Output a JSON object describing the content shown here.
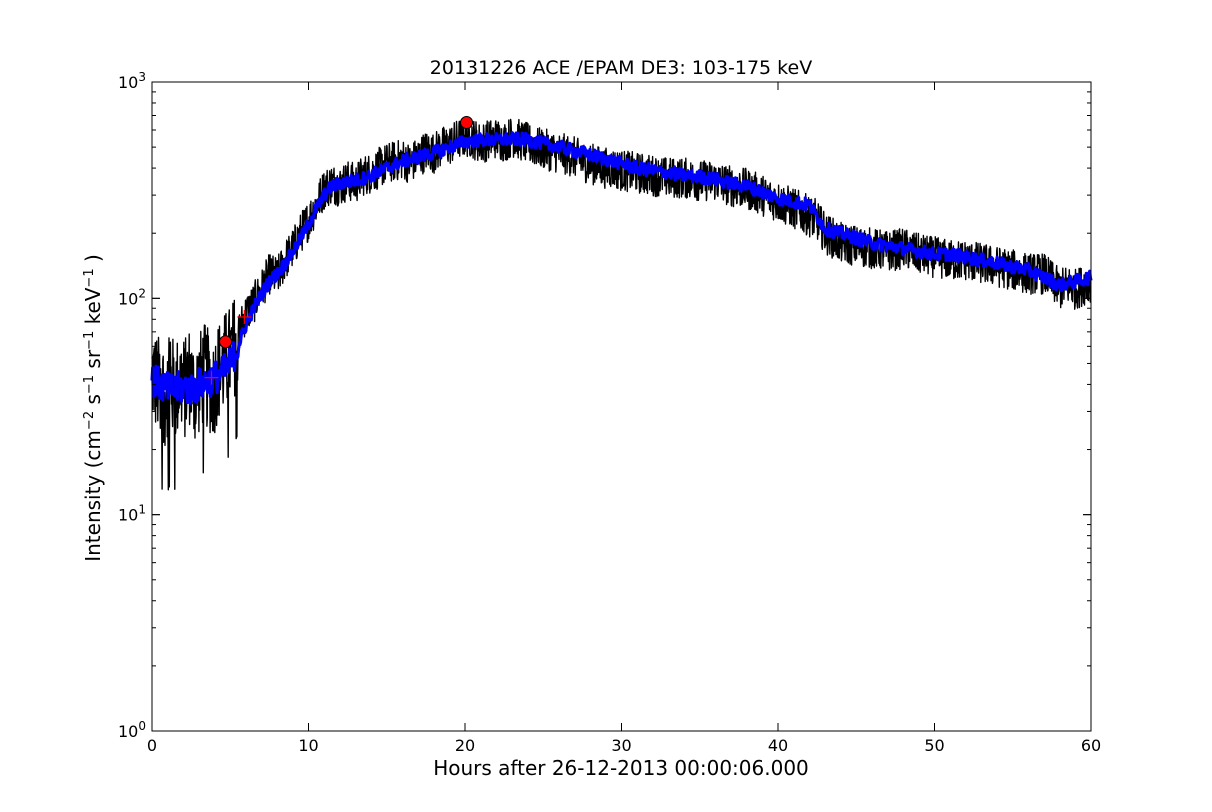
{
  "chart_data": {
    "type": "line",
    "title": "20131226 ACE /EPAM DE3: 103-175 keV",
    "xlabel": "Hours after 26-12-2013 00:00:06.000",
    "ylabel_main": "Intensity (cm",
    "ylabel_parts": [
      "−2",
      " s",
      "−1",
      " sr",
      "−1",
      " keV",
      "−1",
      " )"
    ],
    "xlim": [
      0,
      60
    ],
    "ylim": [
      1,
      1000
    ],
    "yscale": "log",
    "xticks": [
      0,
      10,
      20,
      30,
      40,
      50,
      60
    ],
    "xtick_labels": [
      "0",
      "10",
      "20",
      "30",
      "40",
      "50",
      "60"
    ],
    "yticks_major": [
      1,
      10,
      100,
      1000
    ],
    "ytick_labels": [
      {
        "base": "10",
        "exp": "0"
      },
      {
        "base": "10",
        "exp": "1"
      },
      {
        "base": "10",
        "exp": "2"
      },
      {
        "base": "10",
        "exp": "3"
      }
    ],
    "grid": false,
    "colors": {
      "raw": "#000000",
      "smoothed": "#0000ff",
      "markers": "#ff0000"
    },
    "series": [
      {
        "kind": "raw",
        "x": [
          0,
          0.3,
          0.6,
          0.9,
          1.2,
          1.5,
          1.8,
          2.1,
          2.4,
          2.7,
          3.0,
          3.3,
          3.6,
          3.9,
          4.2,
          4.5,
          4.8,
          5.1,
          5.4,
          5.7,
          6.0,
          6.5,
          7,
          7.5,
          8,
          8.5,
          9,
          9.5,
          10,
          10.5,
          11,
          11.5,
          12,
          12.5,
          13,
          13.5,
          14,
          14.5,
          15,
          15.5,
          16,
          16.5,
          17,
          17.5,
          18,
          18.5,
          19,
          19.5,
          20,
          20.5,
          21,
          21.5,
          22,
          22.5,
          23,
          23.5,
          24,
          24.5,
          25,
          25.5,
          26,
          26.5,
          27,
          27.5,
          28,
          28.5,
          29,
          29.5,
          30,
          31,
          32,
          33,
          34,
          35,
          36,
          37,
          38,
          39,
          40,
          40.5,
          41,
          41.5,
          42,
          42.5,
          43,
          43.5,
          44,
          45,
          46,
          47,
          48,
          49,
          50,
          51,
          52,
          53,
          54,
          55,
          56,
          57,
          57.5,
          58,
          58.5,
          59,
          59.5,
          60
        ],
        "y": [
          45,
          40,
          38,
          35,
          40,
          37,
          42,
          38,
          44,
          36,
          40,
          45,
          42,
          38,
          46,
          48,
          52,
          55,
          65,
          75,
          85,
          95,
          110,
          130,
          125,
          150,
          170,
          200,
          230,
          270,
          320,
          340,
          330,
          350,
          340,
          370,
          380,
          400,
          420,
          430,
          440,
          420,
          450,
          480,
          470,
          500,
          510,
          540,
          560,
          550,
          520,
          540,
          550,
          530,
          560,
          540,
          520,
          500,
          490,
          480,
          470,
          460,
          450,
          430,
          420,
          410,
          400,
          400,
          390,
          380,
          370,
          360,
          360,
          350,
          350,
          330,
          320,
          300,
          280,
          270,
          260,
          250,
          240,
          230,
          200,
          190,
          180,
          175,
          170,
          165,
          170,
          160,
          155,
          150,
          150,
          145,
          140,
          135,
          130,
          130,
          120,
          110,
          115,
          110,
          115,
          120
        ]
      },
      {
        "kind": "smoothed",
        "x": [
          0,
          0.5,
          1,
          1.5,
          2,
          2.5,
          3,
          3.5,
          4,
          4.5,
          5,
          5.5,
          6,
          6.5,
          7,
          7.5,
          8,
          8.5,
          9,
          9.5,
          10,
          10.5,
          11,
          11.5,
          12,
          13,
          14,
          15,
          16,
          17,
          18,
          19,
          20,
          21,
          22,
          23,
          24,
          25,
          26,
          27,
          28,
          29,
          30,
          31,
          32,
          33,
          34,
          35,
          36,
          37,
          38,
          39,
          40,
          41,
          42,
          42.5,
          43,
          44,
          45,
          46,
          47,
          48,
          49,
          50,
          51,
          52,
          53,
          54,
          55,
          56,
          57,
          58,
          59,
          60
        ],
        "y": [
          42,
          40,
          38,
          38,
          39,
          38,
          40,
          41,
          43,
          45,
          50,
          60,
          75,
          90,
          105,
          120,
          130,
          145,
          165,
          190,
          220,
          260,
          300,
          330,
          340,
          350,
          370,
          400,
          430,
          450,
          470,
          500,
          530,
          540,
          540,
          545,
          540,
          520,
          500,
          480,
          460,
          440,
          420,
          400,
          390,
          380,
          370,
          365,
          355,
          340,
          330,
          310,
          290,
          280,
          270,
          240,
          210,
          200,
          190,
          180,
          175,
          170,
          165,
          160,
          160,
          155,
          150,
          145,
          140,
          135,
          125,
          115,
          120,
          125
        ]
      }
    ],
    "markers": {
      "circles": [
        {
          "x": 4.7,
          "y": 63
        },
        {
          "x": 20.1,
          "y": 650
        }
      ],
      "crosses": [
        {
          "x": 3.8,
          "y": 43
        },
        {
          "x": 5.9,
          "y": 82
        }
      ]
    }
  }
}
